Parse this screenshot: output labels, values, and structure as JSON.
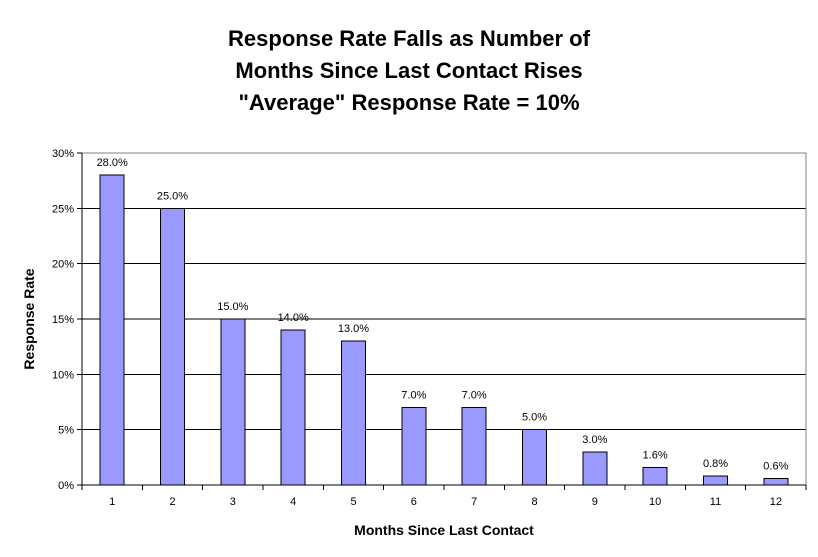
{
  "chart_data": {
    "type": "bar",
    "title_lines": [
      "Response Rate Falls as Number of",
      "Months Since Last Contact Rises",
      "\"Average\" Response Rate = 10%"
    ],
    "xlabel": "Months Since Last Contact",
    "ylabel": "Response Rate",
    "categories": [
      "1",
      "2",
      "3",
      "4",
      "5",
      "6",
      "7",
      "8",
      "9",
      "10",
      "11",
      "12"
    ],
    "values": [
      28.0,
      25.0,
      15.0,
      14.0,
      13.0,
      7.0,
      7.0,
      5.0,
      3.0,
      1.6,
      0.8,
      0.6
    ],
    "data_labels": [
      "28.0%",
      "25.0%",
      "15.0%",
      "14.0%",
      "13.0%",
      "7.0%",
      "7.0%",
      "5.0%",
      "3.0%",
      "1.6%",
      "0.8%",
      "0.6%"
    ],
    "y_ticks": [
      0,
      5,
      10,
      15,
      20,
      25,
      30
    ],
    "y_tick_labels": [
      "0%",
      "5%",
      "10%",
      "15%",
      "20%",
      "25%",
      "30%"
    ],
    "ylim": [
      0,
      30
    ],
    "grid": true,
    "legend": "none",
    "bar_color": "#9999ff",
    "bar_edge_color": "#000000",
    "gridline_color": "#000000",
    "background_color": "#ffffff"
  }
}
